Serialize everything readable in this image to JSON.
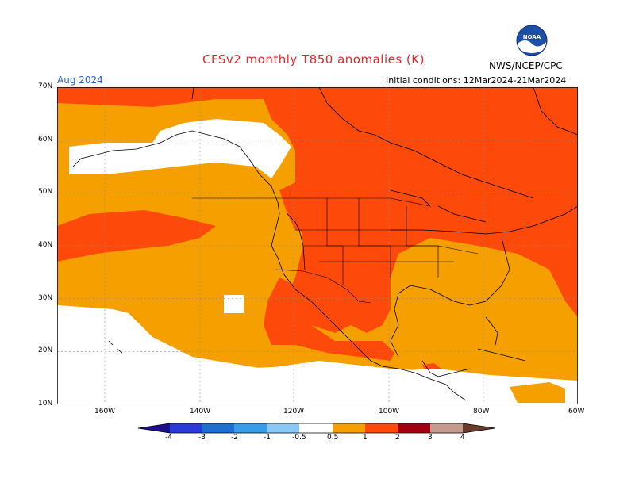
{
  "header": {
    "title": "CFSv2 monthly T850 anomalies (K)",
    "month": "Aug 2024",
    "initial_conditions": "Initial conditions: 12Mar2024-21Mar2024",
    "agency": "NWS/NCEP/CPC",
    "logo_text": "NOAA"
  },
  "axes": {
    "lat_labels": [
      "70N",
      "60N",
      "50N",
      "40N",
      "30N",
      "20N",
      "10N"
    ],
    "lon_labels": [
      "160W",
      "140W",
      "120W",
      "100W",
      "80W",
      "60W"
    ]
  },
  "colorbar": {
    "labels": [
      "-4",
      "-3",
      "-2",
      "-1",
      "-0.5",
      "0.5",
      "1",
      "2",
      "3",
      "4"
    ],
    "colors": [
      "#1b0f8f",
      "#2b3bd6",
      "#1e6fd0",
      "#3a9be6",
      "#8cc8f5",
      "#ffffff",
      "#f5a000",
      "#fd4a0a",
      "#a00010",
      "#c29a8e",
      "#6b3a2a"
    ]
  },
  "colors": {
    "warm_0_5_1": "#f5a000",
    "warm_1_2": "#fd4a0a",
    "neutral": "#ffffff",
    "coast": "#000000"
  }
}
